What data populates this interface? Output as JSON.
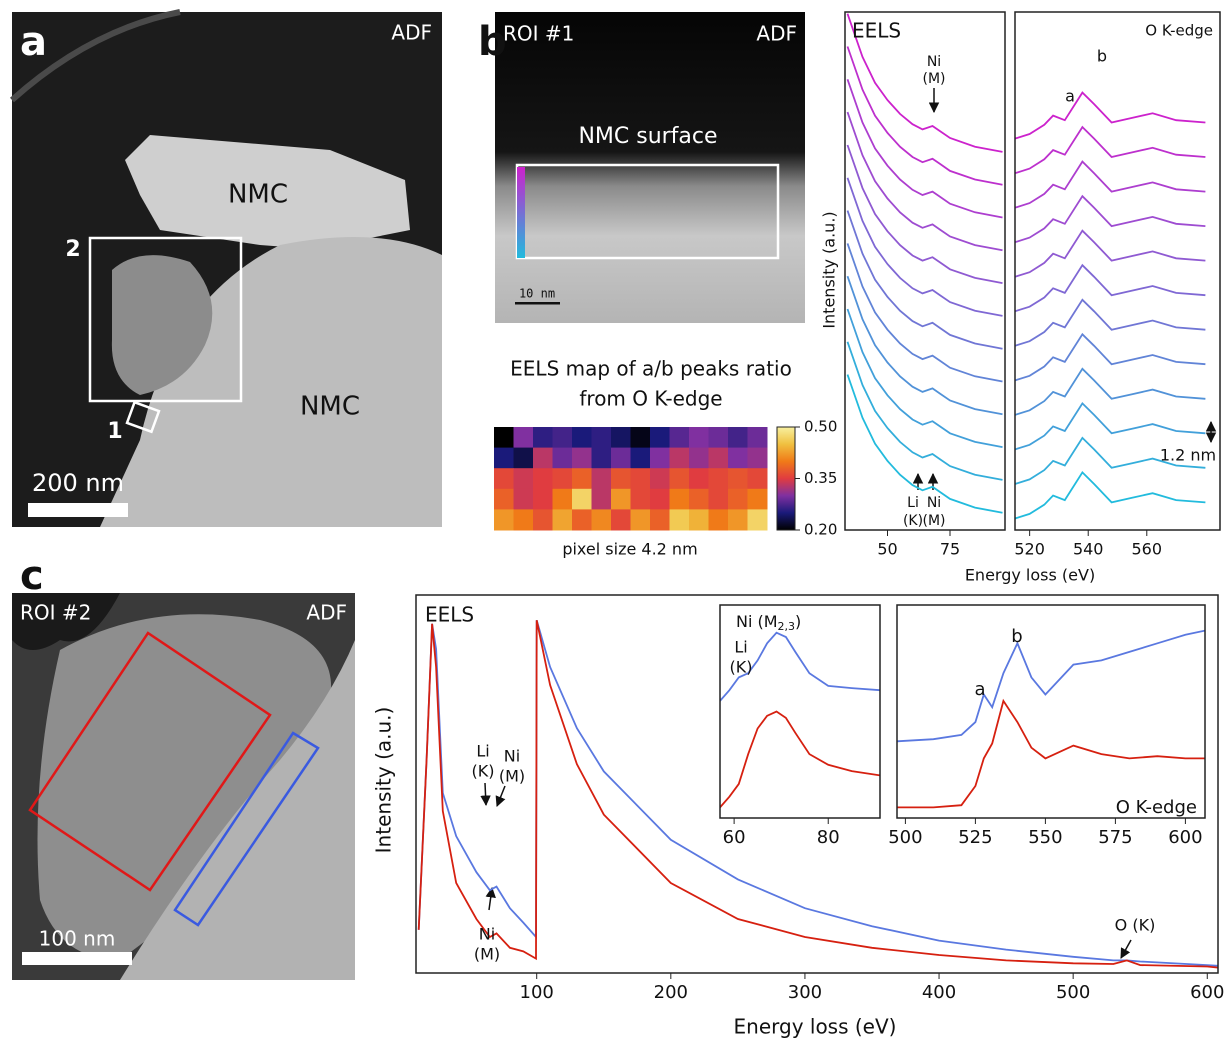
{
  "figure": {
    "panel_a": {
      "label": "a",
      "mode": "ADF",
      "regions": [
        "NMC",
        "NMC"
      ],
      "boxes": [
        "2",
        "1"
      ],
      "scale": "200 nm"
    },
    "panel_b": {
      "label": "b",
      "roi": "ROI #1",
      "mode": "ADF",
      "region": "NMC surface",
      "scale": "10 nm"
    },
    "panel_c": {
      "label": "c",
      "roi": "ROI #2",
      "mode": "ADF",
      "scale": "100 nm"
    }
  },
  "chart_data": [
    {
      "type": "line",
      "title": "EELS",
      "y_label": "Intensity (a.u.)",
      "x_label": "Energy loss (eV)",
      "annotations": [
        "Ni",
        "(M)",
        "Li",
        "(K)",
        "Ni",
        "(M)"
      ],
      "xlim": [
        33,
        97
      ],
      "ylim": [
        0,
        30
      ],
      "xticks": [
        50,
        75
      ],
      "x": [
        34,
        40,
        45,
        50,
        55,
        60,
        64,
        68,
        71,
        75,
        85,
        96
      ],
      "series": [
        {
          "color": "#cc22cc",
          "values": [
            29.9,
            27.4,
            25.9,
            24.9,
            24.1,
            23.5,
            23.2,
            23.4,
            23.1,
            22.7,
            22.2,
            21.9
          ]
        },
        {
          "color": "#bd30cd",
          "values": [
            28,
            25.5,
            24,
            23,
            22.2,
            21.6,
            21.3,
            21.5,
            21.2,
            20.8,
            20.3,
            20
          ]
        },
        {
          "color": "#ad3ecf",
          "values": [
            26.1,
            23.6,
            22.1,
            21.1,
            20.3,
            19.7,
            19.4,
            19.6,
            19.3,
            18.9,
            18.4,
            18.1
          ]
        },
        {
          "color": "#9e4cd1",
          "values": [
            24.2,
            21.7,
            20.2,
            19.2,
            18.4,
            17.8,
            17.5,
            17.7,
            17.4,
            17,
            16.5,
            16.2
          ]
        },
        {
          "color": "#8f5ad2",
          "values": [
            22.3,
            19.8,
            18.3,
            17.3,
            16.5,
            15.9,
            15.6,
            15.8,
            15.5,
            15.1,
            14.6,
            14.3
          ]
        },
        {
          "color": "#7f68d4",
          "values": [
            20.4,
            17.9,
            16.4,
            15.4,
            14.6,
            14,
            13.7,
            13.9,
            13.6,
            13.2,
            12.7,
            12.4
          ]
        },
        {
          "color": "#7076d5",
          "values": [
            18.5,
            16,
            14.5,
            13.5,
            12.7,
            12.1,
            11.8,
            12,
            11.7,
            11.3,
            10.8,
            10.5
          ]
        },
        {
          "color": "#6184d7",
          "values": [
            16.6,
            14.1,
            12.6,
            11.6,
            10.8,
            10.2,
            9.9,
            10.1,
            9.8,
            9.4,
            8.9,
            8.6
          ]
        },
        {
          "color": "#5192d8",
          "values": [
            14.7,
            12.2,
            10.7,
            9.7,
            8.9,
            8.3,
            8,
            8.2,
            7.9,
            7.5,
            7,
            6.7
          ]
        },
        {
          "color": "#42a0da",
          "values": [
            12.8,
            10.3,
            8.8,
            7.8,
            7,
            6.4,
            6.1,
            6.3,
            6,
            5.6,
            5.1,
            4.8
          ]
        },
        {
          "color": "#33aedb",
          "values": [
            10.9,
            8.4,
            6.9,
            5.9,
            5.1,
            4.5,
            4.2,
            4.4,
            4.1,
            3.7,
            3.2,
            2.9
          ]
        },
        {
          "color": "#22bbdd",
          "values": [
            9,
            6.5,
            5,
            4,
            3.2,
            2.6,
            2.3,
            2.5,
            2.2,
            1.8,
            1.3,
            1
          ]
        }
      ]
    },
    {
      "type": "line",
      "title": "O K-edge",
      "annotations": [
        "a",
        "b",
        "1.2 nm"
      ],
      "xlim": [
        515,
        585
      ],
      "ylim": [
        -0.5,
        22
      ],
      "xticks": [
        520,
        540,
        560
      ],
      "x": [
        515,
        520,
        525,
        528,
        532,
        538,
        542,
        548,
        555,
        562,
        570,
        580
      ],
      "series": [
        {
          "color": "#cc22cc",
          "values": [
            16.5,
            16.7,
            17.1,
            17.5,
            17.3,
            18.5,
            18,
            17.2,
            17.4,
            17.6,
            17.3,
            17.2
          ]
        },
        {
          "color": "#bd30cd",
          "values": [
            15,
            15.2,
            15.6,
            16,
            15.8,
            17,
            16.5,
            15.7,
            15.9,
            16.1,
            15.8,
            15.7
          ]
        },
        {
          "color": "#ad3ecf",
          "values": [
            13.5,
            13.7,
            14.1,
            14.5,
            14.3,
            15.5,
            15,
            14.2,
            14.4,
            14.6,
            14.3,
            14.2
          ]
        },
        {
          "color": "#9e4cd1",
          "values": [
            12,
            12.2,
            12.6,
            13,
            12.8,
            14,
            13.5,
            12.7,
            12.9,
            13.1,
            12.8,
            12.7
          ]
        },
        {
          "color": "#8f5ad2",
          "values": [
            10.5,
            10.7,
            11.1,
            11.5,
            11.3,
            12.5,
            12,
            11.2,
            11.4,
            11.6,
            11.3,
            11.2
          ]
        },
        {
          "color": "#7f68d4",
          "values": [
            9,
            9.2,
            9.6,
            10,
            9.8,
            11,
            10.5,
            9.7,
            9.9,
            10.1,
            9.8,
            9.7
          ]
        },
        {
          "color": "#7076d5",
          "values": [
            7.5,
            7.7,
            8.1,
            8.5,
            8.3,
            9.5,
            9,
            8.2,
            8.4,
            8.6,
            8.3,
            8.2
          ]
        },
        {
          "color": "#6184d7",
          "values": [
            6,
            6.2,
            6.6,
            7,
            6.8,
            8,
            7.5,
            6.7,
            6.9,
            7.1,
            6.8,
            6.7
          ]
        },
        {
          "color": "#5192d8",
          "values": [
            4.5,
            4.7,
            5.1,
            5.5,
            5.3,
            6.5,
            6,
            5.2,
            5.4,
            5.6,
            5.3,
            5.2
          ]
        },
        {
          "color": "#42a0da",
          "values": [
            3,
            3.2,
            3.6,
            4,
            3.8,
            5,
            4.5,
            3.7,
            3.9,
            4.1,
            3.8,
            3.7
          ]
        },
        {
          "color": "#33aedb",
          "values": [
            1.5,
            1.7,
            2.1,
            2.5,
            2.3,
            3.5,
            3,
            2.2,
            2.4,
            2.6,
            2.3,
            2.2
          ]
        },
        {
          "color": "#22bbdd",
          "values": [
            0,
            0.2,
            0.6,
            1,
            0.8,
            2,
            1.5,
            0.7,
            0.9,
            1.1,
            0.8,
            0.7
          ]
        }
      ]
    },
    {
      "type": "heatmap",
      "title_lines": [
        "EELS map of a/b peaks ratio",
        "from O K-edge"
      ],
      "caption": "pixel size 4.2 nm",
      "clim": [
        0.2,
        0.5
      ],
      "colormap": [
        "#000000",
        "#1a1a7a",
        "#8030a0",
        "#e03c40",
        "#f07a18",
        "#f0c040",
        "#f8f0a0"
      ],
      "colorbar_ticks": [
        {
          "value": 0.5,
          "label": "0.50"
        },
        {
          "value": 0.35,
          "label": "0.35"
        },
        {
          "value": 0.2,
          "label": "0.20"
        }
      ],
      "values": [
        [
          0.2,
          0.3,
          0.26,
          0.27,
          0.25,
          0.26,
          0.24,
          0.21,
          0.25,
          0.28,
          0.3,
          0.29,
          0.27,
          0.29
        ],
        [
          0.25,
          0.23,
          0.33,
          0.29,
          0.31,
          0.26,
          0.29,
          0.25,
          0.3,
          0.33,
          0.31,
          0.33,
          0.3,
          0.31
        ],
        [
          0.36,
          0.34,
          0.35,
          0.36,
          0.38,
          0.33,
          0.37,
          0.36,
          0.34,
          0.37,
          0.35,
          0.36,
          0.37,
          0.36
        ],
        [
          0.38,
          0.34,
          0.35,
          0.4,
          0.47,
          0.33,
          0.42,
          0.36,
          0.35,
          0.4,
          0.38,
          0.36,
          0.38,
          0.4
        ],
        [
          0.42,
          0.4,
          0.37,
          0.43,
          0.38,
          0.41,
          0.36,
          0.42,
          0.38,
          0.46,
          0.44,
          0.4,
          0.42,
          0.47
        ]
      ]
    },
    {
      "type": "line",
      "title": "EELS",
      "y_label": "Intensity (a.u.)",
      "x_label": "Energy loss (eV)",
      "annotations": [
        "Li",
        "(K)",
        "Ni",
        "(M)",
        "Ni",
        "(M)",
        "O (K)"
      ],
      "xlim": [
        10,
        608
      ],
      "ylim": [
        0,
        1.05
      ],
      "xticks": [
        100,
        200,
        300,
        400,
        500,
        600
      ],
      "x": [
        12,
        18,
        22,
        25,
        30,
        40,
        55,
        65,
        70,
        80,
        90,
        99.5,
        100,
        110,
        130,
        150,
        200,
        250,
        300,
        350,
        400,
        450,
        500,
        530,
        540,
        550,
        600,
        608
      ],
      "series": [
        {
          "color": "#5a78e0",
          "values": [
            0.12,
            0.6,
            0.97,
            0.9,
            0.5,
            0.38,
            0.28,
            0.23,
            0.24,
            0.18,
            0.14,
            0.1,
            0.98,
            0.85,
            0.68,
            0.56,
            0.37,
            0.26,
            0.18,
            0.13,
            0.09,
            0.065,
            0.045,
            0.035,
            0.035,
            0.032,
            0.022,
            0.02
          ]
        },
        {
          "color": "#d62010",
          "values": [
            0.12,
            0.6,
            0.97,
            0.85,
            0.45,
            0.25,
            0.15,
            0.1,
            0.11,
            0.07,
            0.06,
            0.04,
            0.98,
            0.8,
            0.58,
            0.44,
            0.25,
            0.15,
            0.1,
            0.07,
            0.05,
            0.035,
            0.027,
            0.025,
            0.035,
            0.022,
            0.018,
            0.015
          ]
        }
      ]
    },
    {
      "type": "line",
      "label_parts": [
        "Ni (M",
        "2,3",
        ")"
      ],
      "annotations": [
        "Li",
        "(K)"
      ],
      "xlim": [
        57,
        91
      ],
      "ylim": [
        0,
        1
      ],
      "xticks": [
        60,
        80
      ],
      "x": [
        57,
        59,
        61,
        63,
        65,
        67,
        69,
        71,
        73,
        76,
        80,
        85,
        91
      ],
      "series": [
        {
          "color": "#5a78e0",
          "values": [
            0.55,
            0.6,
            0.66,
            0.68,
            0.74,
            0.82,
            0.87,
            0.85,
            0.78,
            0.68,
            0.62,
            0.61,
            0.6
          ]
        },
        {
          "color": "#d62010",
          "values": [
            0.05,
            0.1,
            0.16,
            0.3,
            0.42,
            0.48,
            0.5,
            0.47,
            0.4,
            0.3,
            0.25,
            0.22,
            0.2
          ]
        }
      ]
    },
    {
      "type": "line",
      "title": "O K-edge",
      "annotations": [
        "a",
        "b"
      ],
      "xlim": [
        497,
        607
      ],
      "ylim": [
        0,
        1
      ],
      "xticks": [
        500,
        525,
        550,
        575,
        600
      ],
      "x": [
        497,
        510,
        520,
        525,
        528,
        531,
        535,
        540,
        545,
        550,
        560,
        570,
        580,
        590,
        600,
        607
      ],
      "series": [
        {
          "color": "#5a78e0",
          "values": [
            0.36,
            0.37,
            0.39,
            0.45,
            0.58,
            0.52,
            0.68,
            0.82,
            0.66,
            0.58,
            0.72,
            0.74,
            0.78,
            0.82,
            0.86,
            0.88
          ]
        },
        {
          "color": "#d62010",
          "values": [
            0.05,
            0.05,
            0.06,
            0.15,
            0.28,
            0.35,
            0.55,
            0.45,
            0.33,
            0.28,
            0.34,
            0.3,
            0.28,
            0.29,
            0.28,
            0.28
          ]
        }
      ]
    }
  ]
}
